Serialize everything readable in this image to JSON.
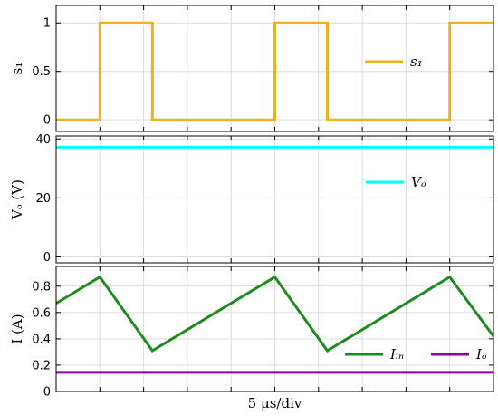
{
  "colors": {
    "s1": "#EDB120",
    "vo": "#00FFFF",
    "iin": "#1F8A1F",
    "io": "#8B00A8",
    "grid": "#DCDCDC",
    "frame": "#000000"
  },
  "x_label": "5 μs/div",
  "chart_data": [
    {
      "type": "line",
      "ylabel": "s₁",
      "ylim": [
        -0.12,
        1.18
      ],
      "xlim": [
        0,
        50
      ],
      "x_grid_step": 5,
      "yticks": [
        0,
        0.5,
        1
      ],
      "ytick_labels": [
        "0",
        "0.5",
        "1"
      ],
      "grid": true,
      "legend_position": "right-upper",
      "series": [
        {
          "name": "s₁",
          "color_key": "s1",
          "x": [
            0,
            5,
            5,
            11,
            11,
            25,
            25,
            31,
            31,
            45,
            45,
            50
          ],
          "y": [
            0,
            0,
            1,
            1,
            0,
            0,
            1,
            1,
            0,
            0,
            1,
            1
          ]
        }
      ]
    },
    {
      "type": "line",
      "ylabel": "Vₒ (V)",
      "ylim": [
        -2,
        41
      ],
      "xlim": [
        0,
        50
      ],
      "x_grid_step": 5,
      "yticks": [
        0,
        20,
        40
      ],
      "ytick_labels": [
        "0",
        "20",
        "40"
      ],
      "grid": true,
      "legend_position": "right-middle",
      "series": [
        {
          "name": "Vₒ",
          "color_key": "vo",
          "x": [
            0,
            50
          ],
          "y": [
            37.2,
            37.2
          ]
        }
      ]
    },
    {
      "type": "line",
      "ylabel": "I (A)",
      "ylim": [
        0,
        0.95
      ],
      "xlim": [
        0,
        50
      ],
      "x_grid_step": 5,
      "yticks": [
        0,
        0.2,
        0.4,
        0.6,
        0.8
      ],
      "ytick_labels": [
        "0",
        "0.2",
        "0.4",
        "0.6",
        "0.8"
      ],
      "grid": true,
      "legend_position": "bottom-right",
      "series": [
        {
          "name": "Iᵢₙ",
          "color_key": "iin",
          "x": [
            0,
            5,
            11,
            25,
            31,
            45,
            50
          ],
          "y": [
            0.67,
            0.87,
            0.31,
            0.87,
            0.31,
            0.87,
            0.42
          ]
        },
        {
          "name": "Iₒ",
          "color_key": "io",
          "x": [
            0,
            50
          ],
          "y": [
            0.145,
            0.145
          ]
        }
      ]
    }
  ]
}
